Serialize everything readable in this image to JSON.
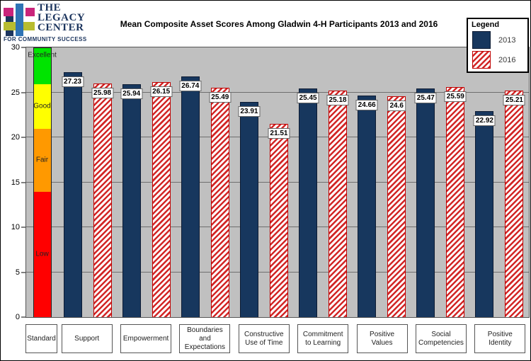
{
  "logo": {
    "line1": "THE",
    "line2": "LEGACY",
    "line3": "CENTER",
    "tagline": "FOR COMMUNITY SUCCESS"
  },
  "title": "Mean Composite Asset Scores Among Gladwin 4-H Participants 2013 and 2016",
  "legend": {
    "title": "Legend",
    "items": [
      {
        "label": "2013",
        "style": "solid"
      },
      {
        "label": "2016",
        "style": "hatched"
      }
    ]
  },
  "colors": {
    "navy_2013": "#17375E",
    "hatch_red_2016": "#D22626",
    "plot_background": "#C0C0C0",
    "band_green": "#00E400",
    "band_yellow": "#FFFF00",
    "band_orange": "#FF9900",
    "band_red": "#FF0000"
  },
  "chart_data": {
    "type": "bar",
    "title": "Mean Composite Asset Scores Among Gladwin 4-H Participants 2013 and 2016",
    "xlabel": "",
    "ylabel": "",
    "ylim": [
      0,
      30
    ],
    "yticks": [
      0,
      5,
      10,
      15,
      20,
      25,
      30
    ],
    "grid_values": [
      5,
      10,
      15,
      20,
      25
    ],
    "grid": "horizontal",
    "legend_position": "top-right",
    "standard_column": {
      "label": "Standard",
      "bands": [
        {
          "name": "Excellent",
          "from": 26,
          "to": 30,
          "color": "#00E400",
          "label_pos": "top"
        },
        {
          "name": "Good",
          "from": 21,
          "to": 26,
          "color": "#FFFF00",
          "label_pos": "center"
        },
        {
          "name": "Fair",
          "from": 14,
          "to": 21,
          "color": "#FF9900",
          "label_pos": "center"
        },
        {
          "name": "Low",
          "from": 0,
          "to": 14,
          "color": "#FF0000",
          "label_pos": "center"
        }
      ]
    },
    "categories": [
      "Support",
      "Empowerment",
      "Boundaries and Expectations",
      "Constructive Use of Time",
      "Commitment to Learning",
      "Positive Values",
      "Social Competencies",
      "Positive Identity"
    ],
    "series": [
      {
        "name": "2013",
        "values": [
          27.23,
          25.94,
          26.74,
          23.91,
          25.45,
          24.66,
          25.47,
          22.92
        ]
      },
      {
        "name": "2016",
        "values": [
          25.98,
          26.15,
          25.49,
          21.51,
          25.18,
          24.6,
          25.59,
          25.21
        ]
      }
    ],
    "x_label_lines": [
      [
        "Standard"
      ],
      [
        "Support"
      ],
      [
        "Empowerment"
      ],
      [
        "Boundaries and",
        "Expectations"
      ],
      [
        "Constructive",
        "Use of Time"
      ],
      [
        "Commitment",
        "to Learning"
      ],
      [
        "Positive",
        "Values"
      ],
      [
        "Social",
        "Competencies"
      ],
      [
        "Positive",
        "Identity"
      ]
    ]
  }
}
